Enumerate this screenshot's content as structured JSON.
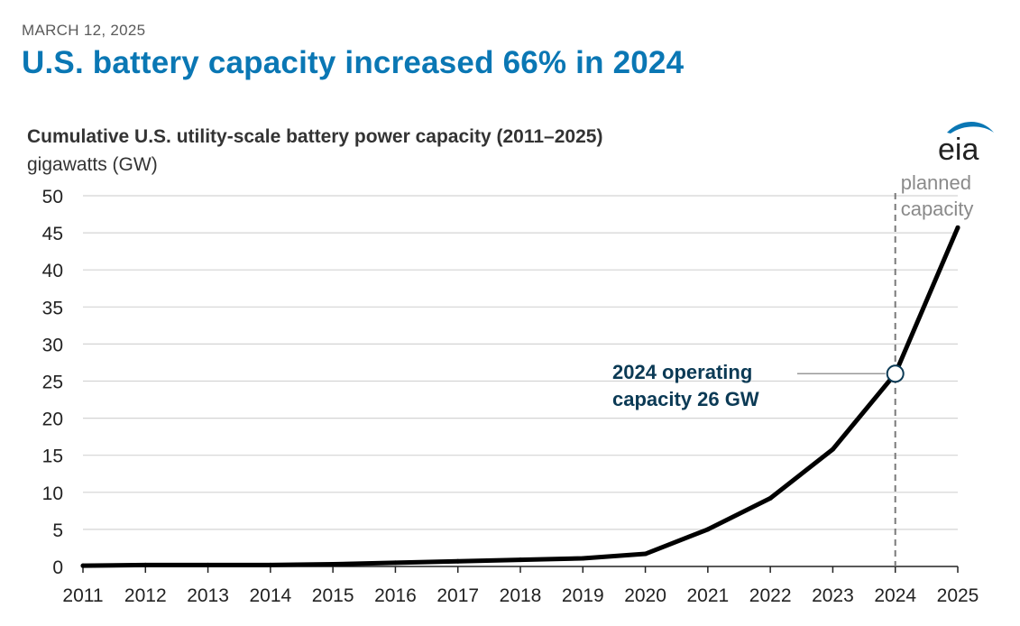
{
  "header": {
    "date": "MARCH 12, 2025",
    "headline": "U.S. battery capacity increased 66% in 2024"
  },
  "logo": {
    "text": "eia",
    "icon": "eia-logo-icon",
    "color": "#0a77b4"
  },
  "colors": {
    "line": "#000000",
    "grid": "#d4d4d4",
    "marker_stroke": "#0b3a55",
    "divider": "#7a7a7a"
  },
  "chart_data": {
    "type": "line",
    "title": "Cumulative U.S. utility-scale battery power capacity (2011–2025)",
    "ylabel": "gigawatts (GW)",
    "xlabel": "",
    "categories": [
      "2011",
      "2012",
      "2013",
      "2014",
      "2015",
      "2016",
      "2017",
      "2018",
      "2019",
      "2020",
      "2021",
      "2022",
      "2023",
      "2024",
      "2025"
    ],
    "series": [
      {
        "name": "Cumulative battery power capacity",
        "values": [
          0.1,
          0.2,
          0.2,
          0.2,
          0.3,
          0.5,
          0.7,
          0.9,
          1.1,
          1.7,
          5.0,
          9.2,
          15.8,
          26,
          45.7
        ]
      }
    ],
    "ylim": [
      0,
      50
    ],
    "yticks": [
      0,
      5,
      10,
      15,
      20,
      25,
      30,
      35,
      40,
      45,
      50
    ],
    "grid": true,
    "annotations": [
      {
        "type": "marker-callout",
        "category": "2024",
        "value": 26,
        "lines": [
          "2024 operating",
          "capacity 26 GW"
        ]
      },
      {
        "type": "divider",
        "category": "2024",
        "lines": [
          "planned",
          "capacity"
        ]
      }
    ]
  }
}
